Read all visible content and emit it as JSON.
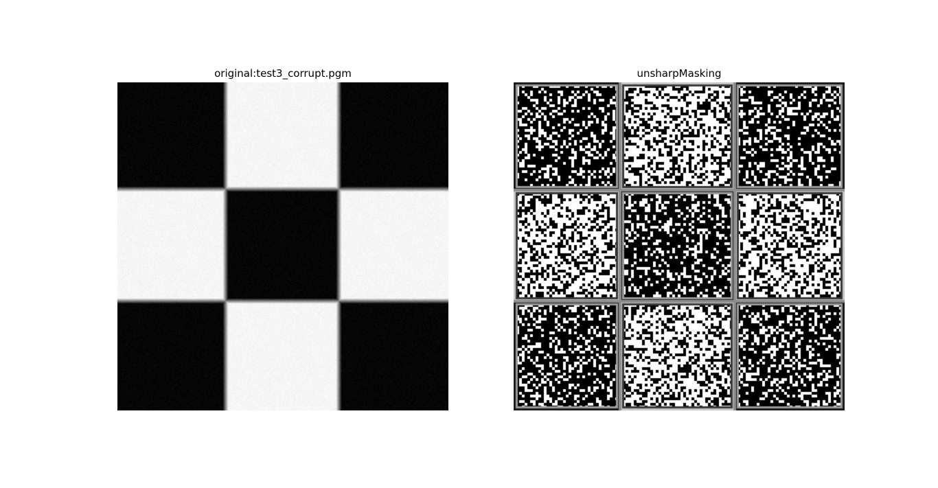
{
  "figure": {
    "left_panel": {
      "title": "original:test3_corrupt.pgm",
      "pattern": "3x3 checkerboard, black corners and center, white edge-middle squares, light noise, blurred borders"
    },
    "right_panel": {
      "title": "unsharpMasking",
      "pattern": "3x3 checkerboard with heavy salt-and-pepper pixel noise and bright/dark halo borders around each square"
    },
    "colors": {
      "black": "#000000",
      "white": "#ffffff",
      "border_gray": "#8c8c8c",
      "background": "#ffffff"
    }
  }
}
